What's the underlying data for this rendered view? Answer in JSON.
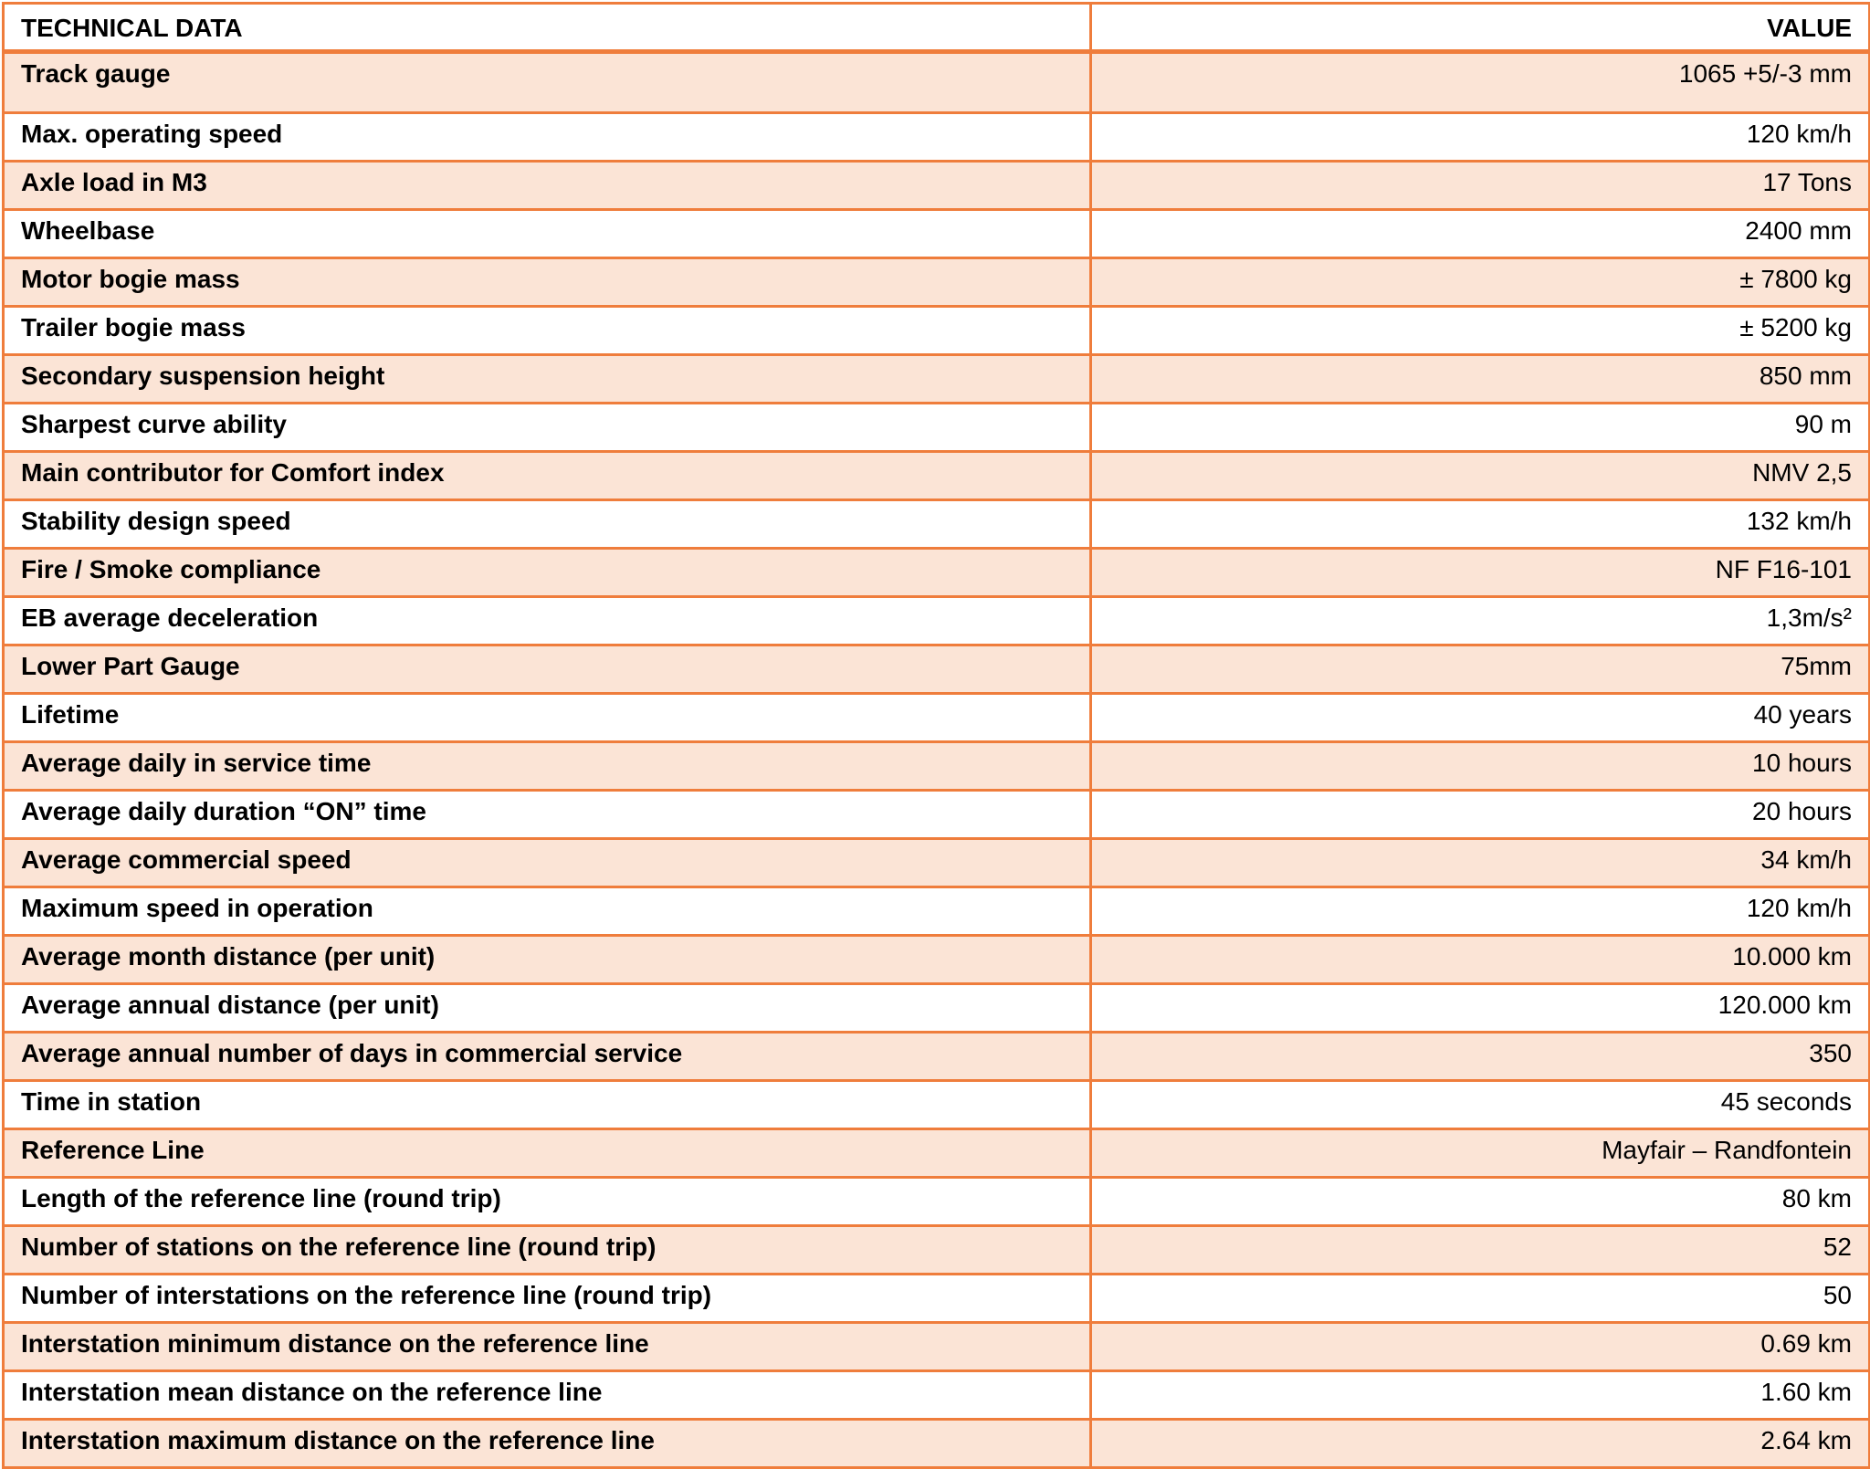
{
  "header": {
    "col_param": "TECHNICAL DATA",
    "col_value": "VALUE"
  },
  "rows": [
    {
      "param": "Track gauge",
      "value": "1065 +5/-3 mm"
    },
    {
      "param": "Max. operating speed",
      "value": "120 km/h"
    },
    {
      "param": "Axle load in M3",
      "value": "17 Tons"
    },
    {
      "param": "Wheelbase",
      "value": "2400 mm"
    },
    {
      "param": "Motor bogie mass",
      "value": "± 7800 kg"
    },
    {
      "param": "Trailer bogie mass",
      "value": "± 5200 kg"
    },
    {
      "param": "Secondary suspension height",
      "value": "850 mm"
    },
    {
      "param": "Sharpest curve ability",
      "value": "90 m"
    },
    {
      "param": "Main contributor for Comfort index",
      "value": "NMV 2,5"
    },
    {
      "param": "Stability design speed",
      "value": "132 km/h"
    },
    {
      "param": "Fire / Smoke compliance",
      "value": "NF F16-101"
    },
    {
      "param": "EB average deceleration",
      "value": "1,3m/s²"
    },
    {
      "param": "Lower Part Gauge",
      "value": "75mm"
    },
    {
      "param": "Lifetime",
      "value": "40 years"
    },
    {
      "param": "Average daily in service time",
      "value": "10 hours"
    },
    {
      "param": "Average daily duration “ON” time",
      "value": "20 hours"
    },
    {
      "param": "Average commercial speed",
      "value": "34 km/h"
    },
    {
      "param": "Maximum speed in operation",
      "value": "120 km/h"
    },
    {
      "param": "Average month distance (per unit)",
      "value": "10.000 km"
    },
    {
      "param": "Average annual distance (per unit)",
      "value": "120.000 km"
    },
    {
      "param": "Average annual number of days in commercial service",
      "value": "350"
    },
    {
      "param": "Time in station",
      "value": "45 seconds"
    },
    {
      "param": "Reference Line",
      "value": "Mayfair – Randfontein"
    },
    {
      "param": "Length of the reference line (round trip)",
      "value": "80 km"
    },
    {
      "param": "Number of stations on the reference line (round trip)",
      "value": "52"
    },
    {
      "param": "Number of interstations on the reference line (round trip)",
      "value": "50"
    },
    {
      "param": "Interstation minimum distance on the reference line",
      "value": "0.69 km"
    },
    {
      "param": "Interstation mean distance on the reference line",
      "value": "1.60 km"
    },
    {
      "param": "Interstation maximum distance on the reference line",
      "value": "2.64 km"
    }
  ],
  "colors": {
    "border": "#ef7d3c",
    "row_shade": "#fbe4d6",
    "row_plain": "#ffffff"
  }
}
